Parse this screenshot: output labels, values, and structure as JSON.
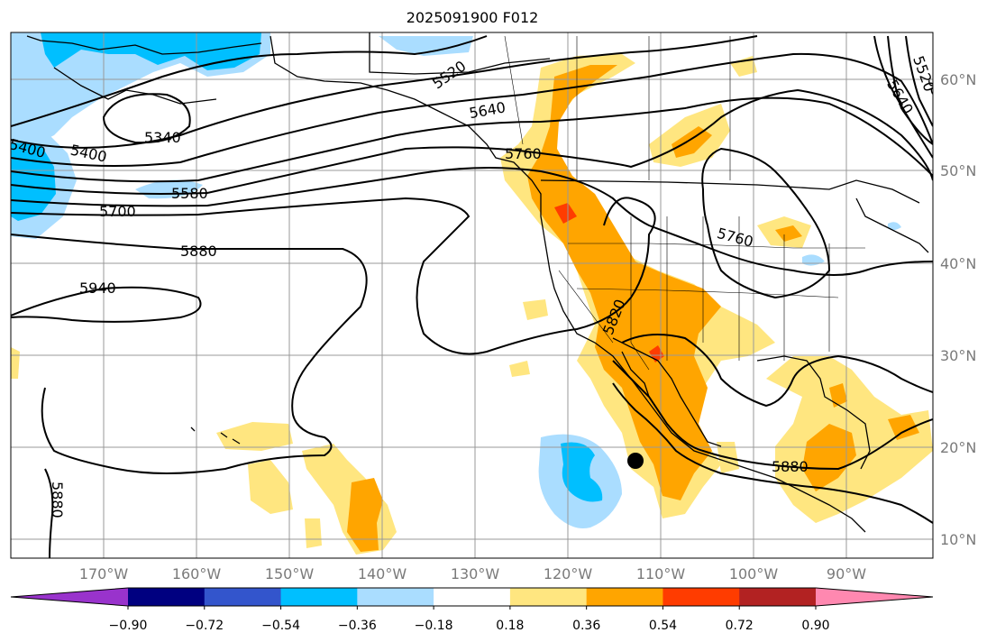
{
  "title": "2025091900 F012",
  "map": {
    "projection": "equirectangular",
    "lon_range": [
      -180,
      -81
    ],
    "lat_range": [
      8,
      65
    ],
    "lon_ticks": [
      "170°W",
      "160°W",
      "150°W",
      "140°W",
      "130°W",
      "120°W",
      "110°W",
      "100°W",
      "90°W"
    ],
    "lat_ticks": [
      "10°N",
      "20°N",
      "30°N",
      "40°N",
      "50°N",
      "60°N"
    ],
    "grid": true
  },
  "contours": {
    "field": "500 hPa height",
    "labels": [
      "5520",
      "5640",
      "5760",
      "5340",
      "5400",
      "5400",
      "5580",
      "5700",
      "5880",
      "5940",
      "5820",
      "5760",
      "5880",
      "5880",
      "5520",
      "5580",
      "5640"
    ]
  },
  "shading": {
    "levels": [
      "−0.90",
      "−0.72",
      "−0.54",
      "−0.36",
      "−0.18",
      "0.18",
      "0.36",
      "0.54",
      "0.72",
      "0.90"
    ],
    "colors": [
      "#9933cc",
      "#000080",
      "#3355cc",
      "#00bfff",
      "#aaddff",
      "#ffffff",
      "#ffe680",
      "#ffa500",
      "#ff3c00",
      "#b22222",
      "#ff88b0"
    ]
  },
  "marker": {
    "lon": -112.3,
    "lat": 18.7
  }
}
